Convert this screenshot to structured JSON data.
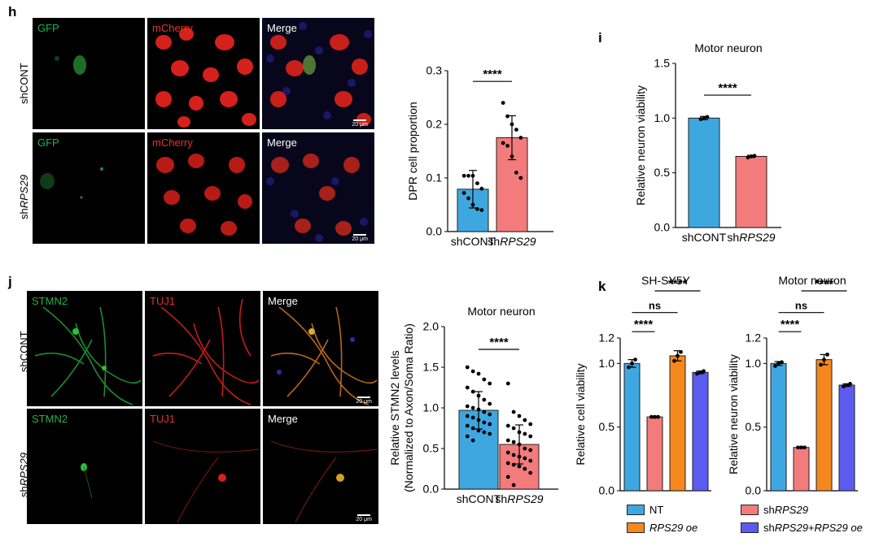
{
  "panels": {
    "h": {
      "letter": "h",
      "rows": [
        {
          "label_pre": "shCONT",
          "label_it": ""
        },
        {
          "label_pre": "sh",
          "label_it": "RPS29"
        }
      ],
      "channels": [
        {
          "label": "GFP",
          "color": "#22b14c"
        },
        {
          "label": "mCherry",
          "color": "#e8302a"
        },
        {
          "label": "Merge",
          "color": "#ffffff"
        }
      ],
      "scalebar": "20 μm"
    },
    "i": {
      "letter": "i"
    },
    "j": {
      "letter": "j",
      "rows": [
        {
          "label_pre": "shCONT",
          "label_it": ""
        },
        {
          "label_pre": "sh",
          "label_it": "RPS29"
        }
      ],
      "channels": [
        {
          "label": "STMN2",
          "color": "#22b14c"
        },
        {
          "label": "TUJ1",
          "color": "#e8302a"
        },
        {
          "label": "Merge",
          "color": "#ffffff"
        }
      ],
      "scalebar": "20 μm"
    },
    "k": {
      "letter": "k"
    }
  },
  "chart_data": [
    {
      "id": "h-chart",
      "type": "bar",
      "title": "",
      "ylabel": "DPR cell proportion",
      "ylim": [
        0,
        0.3
      ],
      "yticks": [
        "0.0",
        "0.1",
        "0.2",
        "0.3"
      ],
      "categories": [
        {
          "pre": "shCONT",
          "it": ""
        },
        {
          "pre": "sh",
          "it": "RPS29"
        }
      ],
      "values": [
        0.079,
        0.175
      ],
      "errors": [
        0.035,
        0.041
      ],
      "colors": [
        "#3fa7e0",
        "#f47b7b"
      ],
      "points": [
        [
          0.104,
          0.104,
          0.104,
          0.09,
          0.08,
          0.072,
          0.062,
          0.05,
          0.042,
          0.04
        ],
        [
          0.24,
          0.215,
          0.2,
          0.19,
          0.175,
          0.165,
          0.16,
          0.14,
          0.11,
          0.1
        ]
      ],
      "significance": [
        {
          "from": 0,
          "to": 1,
          "label": "****",
          "y": 0.28
        }
      ]
    },
    {
      "id": "i-chart",
      "type": "bar",
      "title": "Motor neuron",
      "ylabel": "Relative neuron viability",
      "ylim": [
        0,
        1.5
      ],
      "yticks": [
        "0.0",
        "0.5",
        "1.0",
        "1.5"
      ],
      "categories": [
        {
          "pre": "shCONT",
          "it": ""
        },
        {
          "pre": "sh",
          "it": "RPS29"
        }
      ],
      "values": [
        1.0,
        0.65
      ],
      "errors": [
        0.015,
        0.01
      ],
      "colors": [
        "#3fa7e0",
        "#f47b7b"
      ],
      "points": [
        [
          0.99,
          1.0,
          1.01
        ],
        [
          0.64,
          0.65,
          0.655
        ]
      ],
      "significance": [
        {
          "from": 0,
          "to": 1,
          "label": "****",
          "y": 1.21
        }
      ]
    },
    {
      "id": "j-chart",
      "type": "bar",
      "title": "Motor neuron",
      "ylabel": "Relative STMN2 levels",
      "ylabel2": "(Normalized to Axon/Soma Ratio)",
      "ylim": [
        0,
        2.0
      ],
      "yticks": [
        "0.0",
        "0.5",
        "1.0",
        "1.5",
        "2.0"
      ],
      "categories": [
        {
          "pre": "shCONT",
          "it": ""
        },
        {
          "pre": "sh",
          "it": "RPS29"
        }
      ],
      "values": [
        0.97,
        0.55
      ],
      "errors": [
        0.23,
        0.24
      ],
      "colors": [
        "#3fa7e0",
        "#f47b7b"
      ],
      "points": [
        [
          1.5,
          1.45,
          1.42,
          1.35,
          1.3,
          1.25,
          1.2,
          1.15,
          1.1,
          1.05,
          1.02,
          1.0,
          0.98,
          0.95,
          0.92,
          0.9,
          0.88,
          0.85,
          0.82,
          0.8,
          0.78,
          0.75,
          0.72,
          0.7,
          0.68,
          0.65,
          0.6
        ],
        [
          1.3,
          0.95,
          0.9,
          0.85,
          0.8,
          0.78,
          0.75,
          0.7,
          0.68,
          0.65,
          0.6,
          0.58,
          0.55,
          0.5,
          0.48,
          0.45,
          0.42,
          0.4,
          0.38,
          0.35,
          0.32,
          0.3,
          0.28,
          0.25,
          0.2,
          0.15,
          0.05
        ]
      ],
      "significance": [
        {
          "from": 0,
          "to": 1,
          "label": "****",
          "y": 1.72
        }
      ]
    },
    {
      "id": "k1-chart",
      "type": "bar",
      "title": "SH-SY5Y",
      "ylabel": "Relative cell viability",
      "ylim": [
        0,
        1.2
      ],
      "yticks": [
        "0.0",
        "0.5",
        "1.0",
        "1.2"
      ],
      "categories": [
        "NT",
        "shRPS29",
        "RPS29 oe",
        "shRPS29+RPS29 oe"
      ],
      "values": [
        1.0,
        0.58,
        1.06,
        0.93
      ],
      "errors": [
        0.03,
        0.005,
        0.04,
        0.01
      ],
      "colors": [
        "#3fa7e0",
        "#f47b7b",
        "#f5871f",
        "#5b5bf0"
      ],
      "points": [
        [
          0.97,
          1.0,
          1.03
        ],
        [
          0.58,
          0.58,
          0.58
        ],
        [
          1.02,
          1.06,
          1.09
        ],
        [
          0.92,
          0.93,
          0.94
        ]
      ],
      "significance": [
        {
          "from": 0,
          "to": 1,
          "label": "****",
          "y": 1.25
        },
        {
          "from": 0,
          "to": 2,
          "label": "ns",
          "y": 1.4
        },
        {
          "from": 1,
          "to": 3,
          "label": "****",
          "y": 1.57
        }
      ]
    },
    {
      "id": "k2-chart",
      "type": "bar",
      "title": "Motor neuron",
      "ylabel": "Relative neuron viability",
      "ylim": [
        0,
        1.2
      ],
      "yticks": [
        "0.0",
        "0.5",
        "1.0",
        "1.2"
      ],
      "categories": [
        "NT",
        "shRPS29",
        "RPS29 oe",
        "shRPS29+RPS29 oe"
      ],
      "values": [
        1.0,
        0.34,
        1.03,
        0.83
      ],
      "errors": [
        0.015,
        0.005,
        0.04,
        0.01
      ],
      "colors": [
        "#3fa7e0",
        "#f47b7b",
        "#f5871f",
        "#5b5bf0"
      ],
      "points": [
        [
          0.98,
          1.0,
          1.01
        ],
        [
          0.34,
          0.34,
          0.34
        ],
        [
          0.99,
          1.03,
          1.07
        ],
        [
          0.82,
          0.83,
          0.84
        ]
      ],
      "significance": [
        {
          "from": 0,
          "to": 1,
          "label": "****",
          "y": 1.25
        },
        {
          "from": 0,
          "to": 2,
          "label": "ns",
          "y": 1.4
        },
        {
          "from": 1,
          "to": 3,
          "label": "****",
          "y": 1.57
        }
      ]
    }
  ],
  "legend": [
    {
      "pre": "NT",
      "it": "",
      "post": "",
      "color": "#3fa7e0"
    },
    {
      "pre": "sh",
      "it": "RPS29",
      "post": "",
      "color": "#f47b7b"
    },
    {
      "pre": "",
      "it": "RPS29 oe",
      "post": "",
      "color": "#f5871f"
    },
    {
      "pre": "sh",
      "it": "RPS29",
      "post": "+",
      "it2": "RPS29 oe",
      "color": "#5b5bf0"
    }
  ]
}
